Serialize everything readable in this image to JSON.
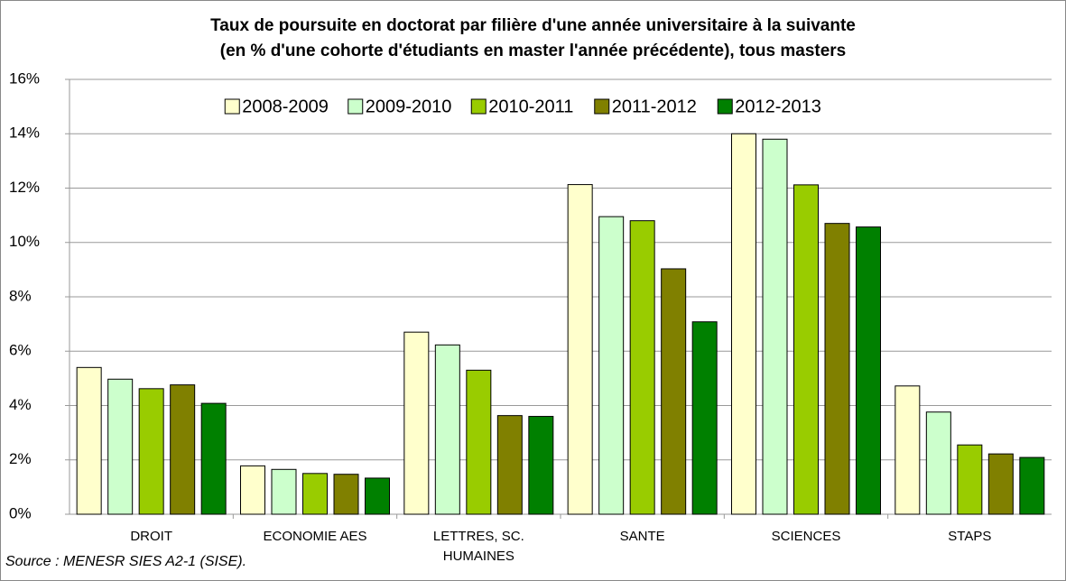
{
  "chart_data": {
    "type": "bar",
    "title": "Taux de poursuite en doctorat par filière d'une année universitaire à la suivante",
    "subtitle": "(en % d'une cohorte d'étudiants en master l'année précédente), tous masters",
    "source": "Source : MENESR SIES A2-1 (SISE).",
    "categories": [
      "DROIT",
      "ECONOMIE AES",
      "LETTRES, SC. HUMAINES",
      "SANTE",
      "SCIENCES",
      "STAPS"
    ],
    "series": [
      {
        "name": "2008-2009",
        "color": "#ffffcc",
        "values": [
          5.4,
          1.78,
          6.7,
          12.13,
          14.0,
          4.72
        ]
      },
      {
        "name": "2009-2010",
        "color": "#ccffcc",
        "values": [
          4.97,
          1.65,
          6.23,
          10.95,
          13.8,
          3.76
        ]
      },
      {
        "name": "2010-2011",
        "color": "#99cc00",
        "values": [
          4.62,
          1.5,
          5.3,
          10.8,
          12.12,
          2.55
        ]
      },
      {
        "name": "2011-2012",
        "color": "#808000",
        "values": [
          4.76,
          1.47,
          3.63,
          9.03,
          10.7,
          2.22
        ]
      },
      {
        "name": "2012-2013",
        "color": "#008000",
        "values": [
          4.08,
          1.33,
          3.6,
          7.08,
          10.57,
          2.09
        ]
      }
    ],
    "ylim": [
      0,
      16
    ],
    "yticks": [
      {
        "value": 0,
        "label": "0%"
      },
      {
        "value": 2,
        "label": "2%"
      },
      {
        "value": 4,
        "label": "4%"
      },
      {
        "value": 6,
        "label": "6%"
      },
      {
        "value": 8,
        "label": "8%"
      },
      {
        "value": 10,
        "label": "10%"
      },
      {
        "value": 12,
        "label": "12%"
      },
      {
        "value": 14,
        "label": "14%"
      },
      {
        "value": 16,
        "label": "16%"
      }
    ],
    "grid": true,
    "legend": "top"
  }
}
